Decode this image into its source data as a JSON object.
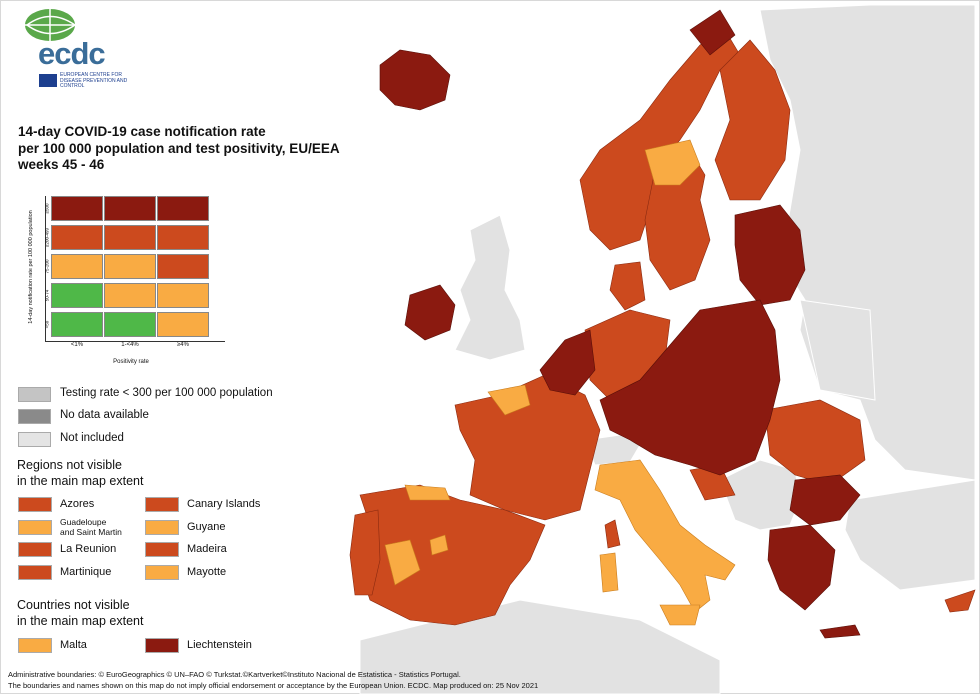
{
  "logo": {
    "name": "ecdc",
    "subtitle": "EUROPEAN CENTRE FOR DISEASE PREVENTION AND CONTROL"
  },
  "title": {
    "line1": "14-day COVID-19 case notification rate",
    "line2": "per 100 000 population and test positivity, EU/EEA",
    "line3": "weeks 45 - 46"
  },
  "matrix": {
    "y_axis_title": "14-day notification rate per 100 000 population",
    "x_axis_title": "Positivity rate",
    "y_ticks": [
      "≥500",
      "≥200-499",
      "75-200",
      "50-74",
      "<50"
    ],
    "x_ticks": [
      "<1%",
      "1-<4%",
      "≥4%"
    ],
    "cells": [
      [
        "#8b1a10",
        "#8b1a10",
        "#8b1a10"
      ],
      [
        "#cc4a1e",
        "#cc4a1e",
        "#cc4a1e"
      ],
      [
        "#f9ab43",
        "#f9ab43",
        "#cc4a1e"
      ],
      [
        "#4fb848",
        "#f9ab43",
        "#f9ab43"
      ],
      [
        "#4fb848",
        "#4fb848",
        "#f9ab43"
      ]
    ]
  },
  "legend": {
    "testing": "Testing rate < 300 per 100 000 population",
    "no_data": "No data available",
    "not_included": "Not included",
    "testing_color": "#c4c4c4",
    "no_data_color": "#8a8a8a",
    "not_included_color": "#e4e4e4"
  },
  "regions_heading": {
    "line1": "Regions not visible",
    "line2": "in the main map extent"
  },
  "regions": [
    {
      "label": "Azores",
      "color": "#cc4a1e"
    },
    {
      "label": "Canary Islands",
      "color": "#cc4a1e"
    },
    {
      "label": "Guadeloupe",
      "label2": "and Saint Martin",
      "color": "#f9ab43"
    },
    {
      "label": "Guyane",
      "color": "#f9ab43"
    },
    {
      "label": "La Reunion",
      "color": "#cc4a1e"
    },
    {
      "label": "Madeira",
      "color": "#cc4a1e"
    },
    {
      "label": "Martinique",
      "color": "#cc4a1e"
    },
    {
      "label": "Mayotte",
      "color": "#f9ab43"
    }
  ],
  "countries_heading": {
    "line1": "Countries not visible",
    "line2": "in the main map extent"
  },
  "countries": [
    {
      "label": "Malta",
      "color": "#f9ab43"
    },
    {
      "label": "Liechtenstein",
      "color": "#8b1a10"
    }
  ],
  "footer": {
    "line1": "Administrative boundaries: © EuroGeographics © UN–FAO © Turkstat.©Kartverket©Instituto Nacional de Estatistica - Statistics Portugal.",
    "line2": "The boundaries and names shown on this map do not imply official endorsement or acceptance by the European Union. ECDC. Map produced on: 25 Nov 2021"
  }
}
